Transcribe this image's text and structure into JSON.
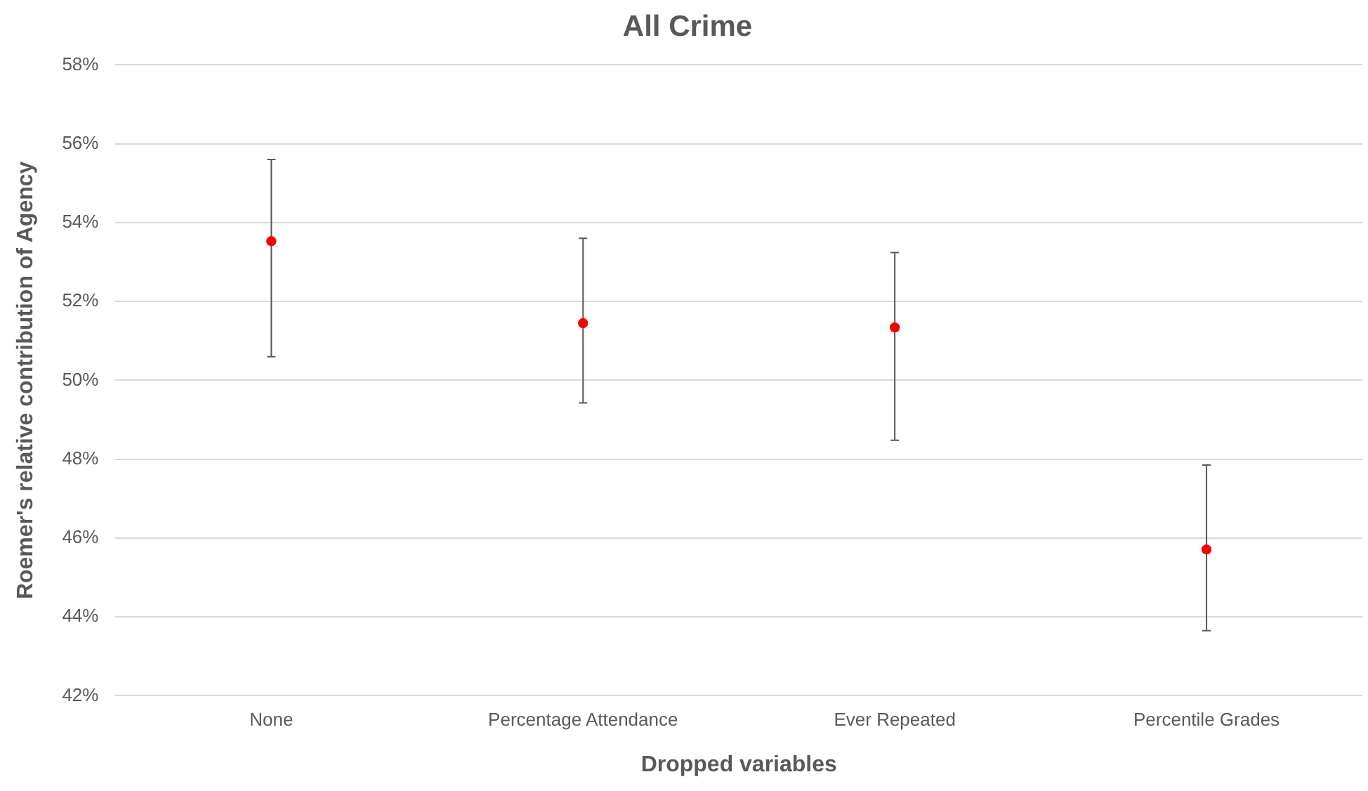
{
  "chart_data": {
    "type": "scatter",
    "title": "All Crime",
    "xlabel": "Dropped variables",
    "ylabel": "Roemer's relative contribution of Agency",
    "categories": [
      "None",
      "Percentage Attendance",
      "Ever Repeated",
      "Percentile Grades"
    ],
    "values": [
      53.53,
      51.45,
      51.34,
      45.71
    ],
    "errors": [
      [
        50.6,
        55.6
      ],
      [
        49.43,
        53.6
      ],
      [
        48.48,
        53.24
      ],
      [
        43.65,
        47.85
      ]
    ],
    "color": "#ff0000",
    "marker": "circle",
    "grid": "y",
    "ylim": [
      42,
      58
    ],
    "yticks": [
      {
        "value": 42,
        "label": "42%"
      },
      {
        "value": 44,
        "label": "44%"
      },
      {
        "value": 46,
        "label": "46%"
      },
      {
        "value": 48,
        "label": "48%"
      },
      {
        "value": 50,
        "label": "50%"
      },
      {
        "value": 52,
        "label": "52%"
      },
      {
        "value": 54,
        "label": "54%"
      },
      {
        "value": 56,
        "label": "56%"
      },
      {
        "value": 58,
        "label": "58%"
      }
    ]
  }
}
